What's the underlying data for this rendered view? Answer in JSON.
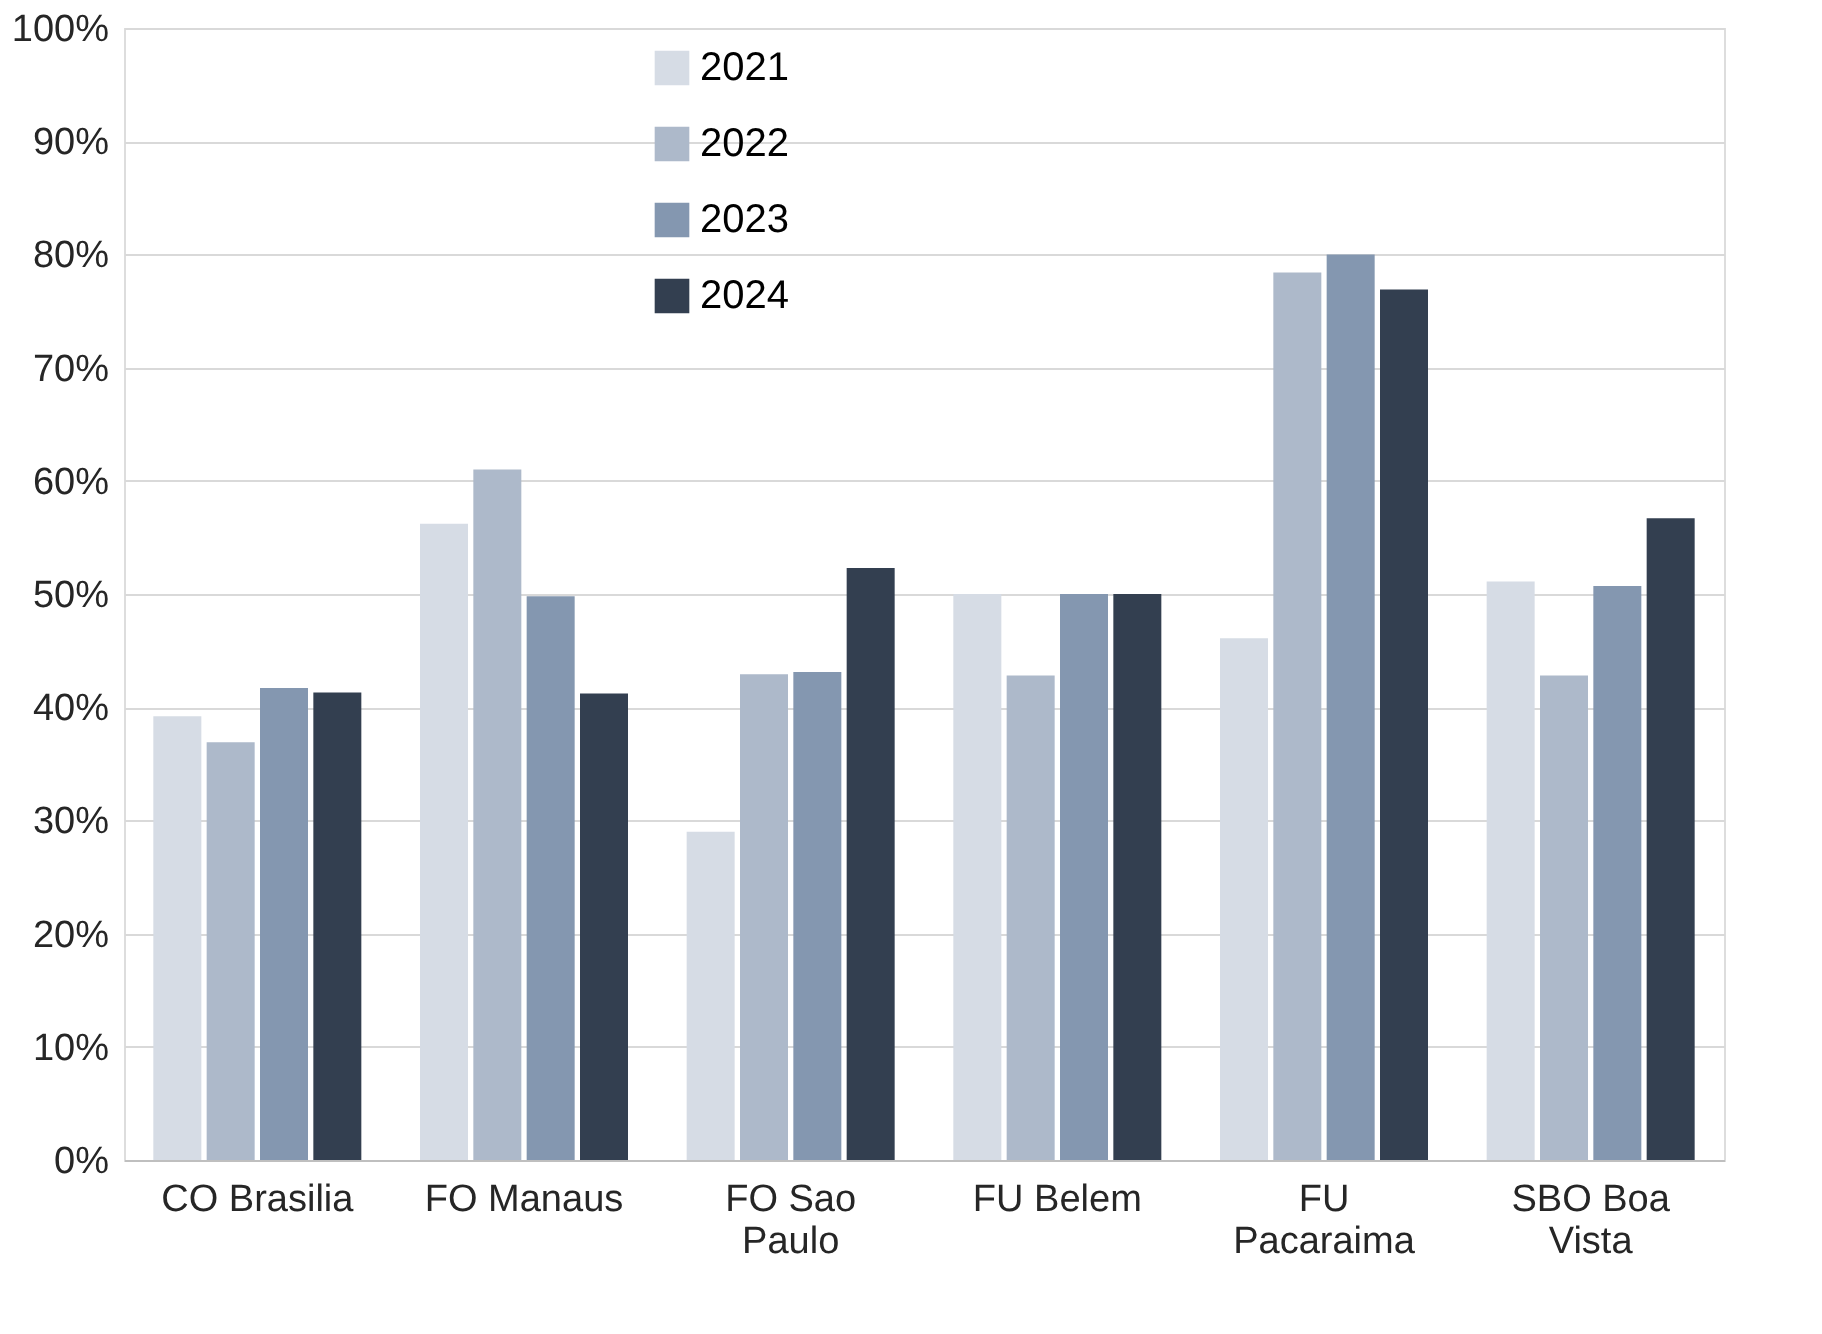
{
  "chart_data": {
    "type": "bar",
    "categories": [
      "CO Brasilia",
      "FO Manaus",
      "FO Sao Paulo",
      "FU Belem",
      "FU Pacaraima",
      "SBO Boa Vista"
    ],
    "series": [
      {
        "name": "2021",
        "color": "#d6dce5",
        "values": [
          39.2,
          56.2,
          29.0,
          50.0,
          46.1,
          51.1
        ]
      },
      {
        "name": "2022",
        "color": "#adb9ca",
        "values": [
          36.9,
          61.0,
          42.9,
          42.8,
          78.4,
          42.8
        ]
      },
      {
        "name": "2023",
        "color": "#8497b0",
        "values": [
          41.7,
          49.8,
          43.1,
          50.0,
          80.0,
          50.7
        ]
      },
      {
        "name": "2024",
        "color": "#333f50",
        "values": [
          41.3,
          41.2,
          52.3,
          50.0,
          76.9,
          56.7
        ]
      }
    ],
    "ylim": [
      0,
      100
    ],
    "yticks": [
      {
        "value": 0,
        "label": "0%"
      },
      {
        "value": 10,
        "label": "10%"
      },
      {
        "value": 20,
        "label": "20%"
      },
      {
        "value": 30,
        "label": "30%"
      },
      {
        "value": 40,
        "label": "40%"
      },
      {
        "value": 50,
        "label": "50%"
      },
      {
        "value": 60,
        "label": "60%"
      },
      {
        "value": 70,
        "label": "70%"
      },
      {
        "value": 80,
        "label": "80%"
      },
      {
        "value": 90,
        "label": "90%"
      },
      {
        "value": 100,
        "label": "100%"
      }
    ],
    "grid": "y",
    "legend": "top"
  }
}
